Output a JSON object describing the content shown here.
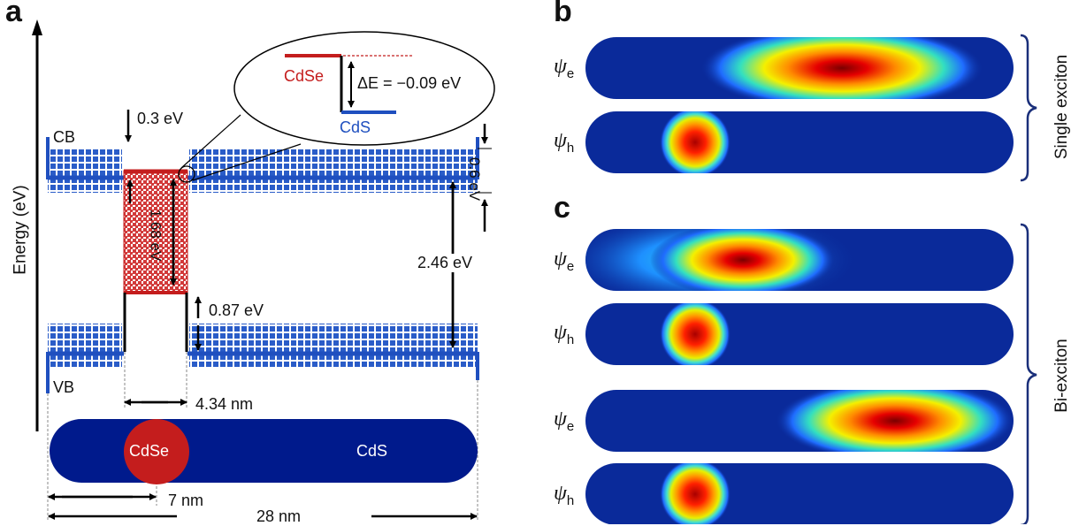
{
  "panel_a": {
    "letter": "a",
    "energy_axis": "Energy (eV)",
    "cb": "CB",
    "vb": "VB",
    "offset_cb": "0.3 eV",
    "broadening_cb": "0.6 eV",
    "gap_cdse": "1.68 eV",
    "offset_vb": "0.87 eV",
    "gap_cds": "2.46 eV",
    "inset_cdse": "CdSe",
    "inset_cds": "CdS",
    "inset_delta": "ΔE = −0.09 eV",
    "rod_core": "CdSe",
    "rod_shell": "CdS",
    "core_length": "4.34 nm",
    "core_position": "7 nm",
    "rod_length": "28 nm"
  },
  "panel_b": {
    "letter": "b",
    "psi_e": "ψ",
    "psi_e_sub": "e",
    "psi_h": "ψ",
    "psi_h_sub": "h",
    "label": "Single exciton"
  },
  "panel_c": {
    "letter": "c",
    "psi1_e": "ψ",
    "psi1_e_sub": "e",
    "psi1_h": "ψ",
    "psi1_h_sub": "h",
    "psi2_e": "ψ",
    "psi2_e_sub": "e",
    "psi2_h": "ψ",
    "psi2_h_sub": "h",
    "label": "Bi-exciton"
  },
  "colors": {
    "rod_blue": "#001a8c",
    "band_blue": "#1f4fbf",
    "cdse_red": "#cc1f1f",
    "arrow": "#000000"
  }
}
